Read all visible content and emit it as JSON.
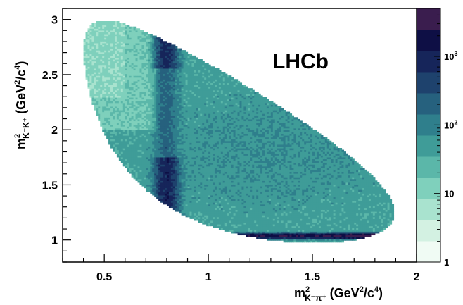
{
  "chart_data": {
    "type": "heatmap",
    "watermark": "LHCb",
    "xlabel": {
      "base": "m",
      "sup": "2",
      "sub": "K⁻π⁺",
      "units_open": " (GeV",
      "units_sup1": "2",
      "units_mid": "/c",
      "units_sup2": "4",
      "units_close": ")"
    },
    "ylabel": {
      "base": "m",
      "sup": "2",
      "sub": "K⁻K⁺",
      "units_open": " (GeV",
      "units_sup1": "2",
      "units_mid": "/c",
      "units_sup2": "4",
      "units_close": ")"
    },
    "xlim": [
      0.3,
      2.0
    ],
    "ylim": [
      0.8,
      3.1
    ],
    "x_ticks": [
      {
        "value": 0.5,
        "label": "0.5"
      },
      {
        "value": 1.0,
        "label": "1"
      },
      {
        "value": 1.5,
        "label": "1.5"
      },
      {
        "value": 2.0,
        "label": "2"
      }
    ],
    "y_ticks": [
      {
        "value": 1.0,
        "label": "1"
      },
      {
        "value": 1.5,
        "label": "1.5"
      },
      {
        "value": 2.0,
        "label": "2"
      },
      {
        "value": 2.5,
        "label": "2.5"
      },
      {
        "value": 3.0,
        "label": "3"
      }
    ],
    "z_scale": "log",
    "zlim": [
      1,
      5000
    ],
    "z_ticks": [
      {
        "value": 1,
        "label": "1"
      },
      {
        "value": 10,
        "label": "10"
      },
      {
        "value": 100,
        "label": "10",
        "sup": "2"
      },
      {
        "value": 1000,
        "label": "10",
        "sup": "3"
      }
    ],
    "colormap": [
      "#f0fbf4",
      "#d3f1e2",
      "#a9e3cf",
      "#7fd0bc",
      "#5bb7a9",
      "#3f9c98",
      "#2f7f8c",
      "#26617e",
      "#1e426d",
      "#16255a",
      "#0e0f45",
      "#3a1d4e"
    ],
    "grid": false,
    "legend": "none",
    "features": [
      {
        "description": "K*(892) band",
        "x": [
          0.75,
          0.85
        ],
        "y_range": [
          1.3,
          2.9
        ]
      },
      {
        "description": "phi(1020) band",
        "y": [
          1.03,
          1.05
        ],
        "x_range": [
          1.15,
          1.85
        ]
      }
    ]
  }
}
